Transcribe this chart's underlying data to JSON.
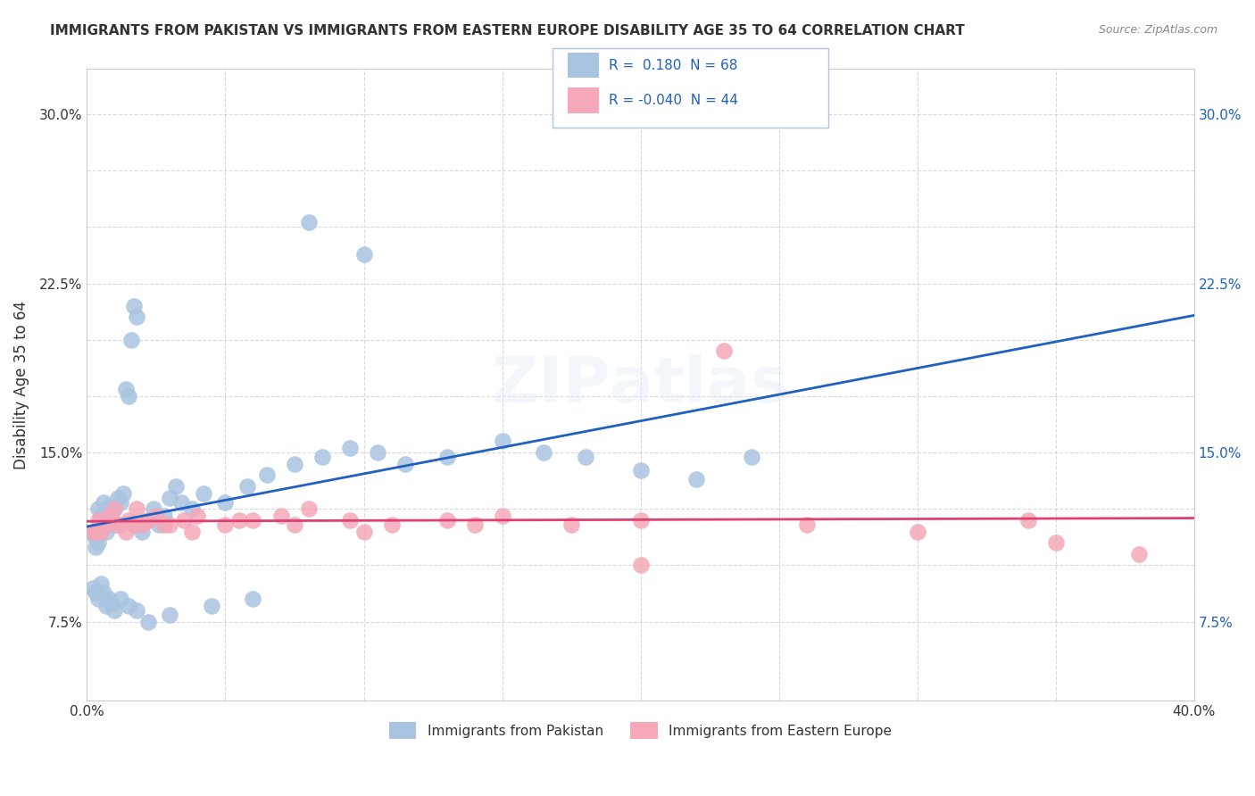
{
  "title": "IMMIGRANTS FROM PAKISTAN VS IMMIGRANTS FROM EASTERN EUROPE DISABILITY AGE 35 TO 64 CORRELATION CHART",
  "source": "Source: ZipAtlas.com",
  "ylabel": "Disability Age 35 to 64",
  "xlabel": "",
  "series1_label": "Immigrants from Pakistan",
  "series2_label": "Immigrants from Eastern Europe",
  "series1_color": "#a8c4e0",
  "series2_color": "#f4a8b8",
  "series1_line_color": "#2060c0",
  "series2_line_color": "#e04070",
  "series1_R": 0.18,
  "series1_N": 68,
  "series2_R": -0.04,
  "series2_N": 44,
  "xlim": [
    0.0,
    0.4
  ],
  "ylim": [
    0.04,
    0.32
  ],
  "xticks": [
    0.0,
    0.05,
    0.1,
    0.15,
    0.2,
    0.25,
    0.3,
    0.35,
    0.4
  ],
  "yticks": [
    0.075,
    0.1,
    0.125,
    0.15,
    0.175,
    0.2,
    0.225,
    0.25,
    0.275,
    0.3
  ],
  "xticklabels": [
    "0.0%",
    "",
    "",
    "",
    "",
    "",
    "",
    "",
    "40.0%"
  ],
  "yticklabels": [
    "7.5%",
    "",
    "",
    "15.0%",
    "",
    "",
    "22.5%",
    "",
    "",
    "30.0%"
  ],
  "watermark": "ZIPAtlas",
  "pakistan_x": [
    0.002,
    0.003,
    0.003,
    0.004,
    0.004,
    0.005,
    0.005,
    0.006,
    0.006,
    0.007,
    0.007,
    0.008,
    0.008,
    0.009,
    0.009,
    0.01,
    0.01,
    0.011,
    0.012,
    0.013,
    0.014,
    0.015,
    0.016,
    0.017,
    0.018,
    0.02,
    0.022,
    0.024,
    0.026,
    0.028,
    0.03,
    0.032,
    0.034,
    0.038,
    0.042,
    0.05,
    0.058,
    0.065,
    0.075,
    0.085,
    0.095,
    0.105,
    0.115,
    0.13,
    0.15,
    0.165,
    0.18,
    0.2,
    0.22,
    0.24,
    0.002,
    0.003,
    0.004,
    0.005,
    0.006,
    0.007,
    0.008,
    0.009,
    0.01,
    0.012,
    0.015,
    0.018,
    0.022,
    0.03,
    0.045,
    0.06,
    0.08,
    0.1
  ],
  "pakistan_y": [
    0.115,
    0.108,
    0.112,
    0.11,
    0.125,
    0.118,
    0.122,
    0.12,
    0.128,
    0.115,
    0.118,
    0.122,
    0.126,
    0.119,
    0.123,
    0.118,
    0.125,
    0.13,
    0.128,
    0.132,
    0.178,
    0.175,
    0.2,
    0.215,
    0.21,
    0.115,
    0.12,
    0.125,
    0.118,
    0.122,
    0.13,
    0.135,
    0.128,
    0.125,
    0.132,
    0.128,
    0.135,
    0.14,
    0.145,
    0.148,
    0.152,
    0.15,
    0.145,
    0.148,
    0.155,
    0.15,
    0.148,
    0.142,
    0.138,
    0.148,
    0.09,
    0.088,
    0.085,
    0.092,
    0.088,
    0.082,
    0.085,
    0.083,
    0.08,
    0.085,
    0.082,
    0.08,
    0.075,
    0.078,
    0.082,
    0.085,
    0.252,
    0.238
  ],
  "eastern_x": [
    0.002,
    0.004,
    0.006,
    0.008,
    0.01,
    0.012,
    0.015,
    0.018,
    0.02,
    0.025,
    0.03,
    0.035,
    0.04,
    0.05,
    0.06,
    0.07,
    0.08,
    0.095,
    0.11,
    0.13,
    0.15,
    0.175,
    0.2,
    0.23,
    0.26,
    0.3,
    0.34,
    0.38,
    0.003,
    0.005,
    0.007,
    0.009,
    0.011,
    0.014,
    0.017,
    0.022,
    0.028,
    0.038,
    0.055,
    0.075,
    0.1,
    0.14,
    0.2,
    0.35
  ],
  "eastern_y": [
    0.115,
    0.12,
    0.118,
    0.122,
    0.125,
    0.118,
    0.12,
    0.125,
    0.118,
    0.122,
    0.118,
    0.12,
    0.122,
    0.118,
    0.12,
    0.122,
    0.125,
    0.12,
    0.118,
    0.12,
    0.122,
    0.118,
    0.12,
    0.195,
    0.118,
    0.115,
    0.12,
    0.105,
    0.115,
    0.115,
    0.118,
    0.12,
    0.118,
    0.115,
    0.118,
    0.12,
    0.118,
    0.115,
    0.12,
    0.118,
    0.115,
    0.118,
    0.1,
    0.11
  ],
  "legend_box_color": "#e8f0f8",
  "legend_border_color": "#b0c4de",
  "grid_color": "#c8c8d8",
  "background_color": "#ffffff"
}
